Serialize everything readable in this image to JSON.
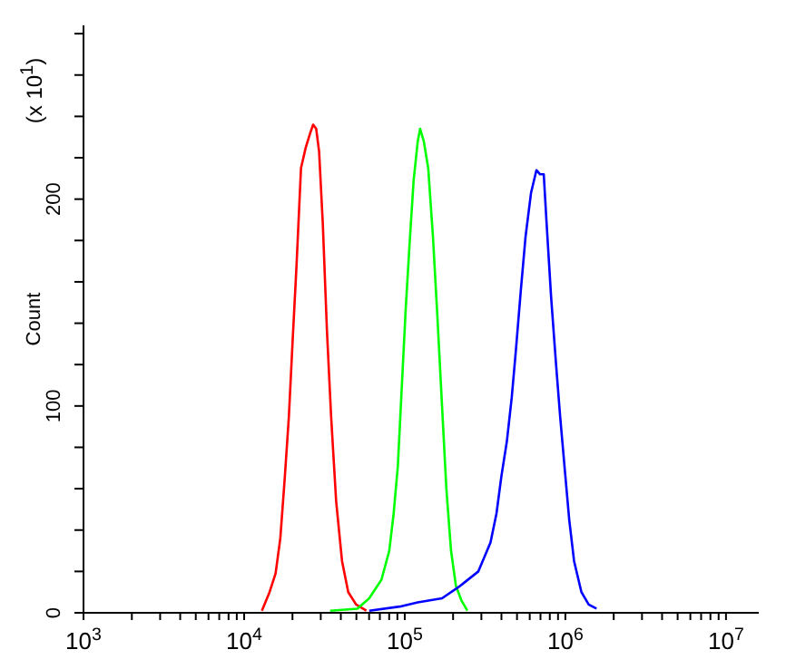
{
  "chart_data": {
    "type": "line",
    "ylabel": "Count",
    "annotations": [
      "(x 10$^{1}$)"
    ],
    "log": "x",
    "marker": "none",
    "line_style": "solid",
    "xlim": [
      1000,
      16000000
    ],
    "ylim": [
      0,
      284
    ],
    "xticks": [
      {
        "value": 1000,
        "label": "10$^{3}$"
      },
      {
        "value": 2000,
        "label": null
      },
      {
        "value": 3000,
        "label": null
      },
      {
        "value": 4000,
        "label": null
      },
      {
        "value": 5000,
        "label": null
      },
      {
        "value": 6000,
        "label": null
      },
      {
        "value": 7000,
        "label": null
      },
      {
        "value": 8000,
        "label": null
      },
      {
        "value": 9000,
        "label": null
      },
      {
        "value": 10000,
        "label": "10$^{4}$"
      },
      {
        "value": 20000,
        "label": null
      },
      {
        "value": 30000,
        "label": null
      },
      {
        "value": 40000,
        "label": null
      },
      {
        "value": 50000,
        "label": null
      },
      {
        "value": 60000,
        "label": null
      },
      {
        "value": 70000,
        "label": null
      },
      {
        "value": 80000,
        "label": null
      },
      {
        "value": 90000,
        "label": null
      },
      {
        "value": 100000,
        "label": "10$^{5}$"
      },
      {
        "value": 200000,
        "label": null
      },
      {
        "value": 300000,
        "label": null
      },
      {
        "value": 400000,
        "label": null
      },
      {
        "value": 500000,
        "label": null
      },
      {
        "value": 600000,
        "label": null
      },
      {
        "value": 700000,
        "label": null
      },
      {
        "value": 800000,
        "label": null
      },
      {
        "value": 900000,
        "label": null
      },
      {
        "value": 1000000,
        "label": "10$^{6}$"
      },
      {
        "value": 2000000,
        "label": null
      },
      {
        "value": 3000000,
        "label": null
      },
      {
        "value": 4000000,
        "label": null
      },
      {
        "value": 5000000,
        "label": null
      },
      {
        "value": 6000000,
        "label": null
      },
      {
        "value": 7000000,
        "label": null
      },
      {
        "value": 8000000,
        "label": null
      },
      {
        "value": 9000000,
        "label": null
      },
      {
        "value": 10000000,
        "label": "10$^{7}$"
      }
    ],
    "yticks": [
      0,
      {
        "value": 20,
        "label": null
      },
      {
        "value": 40,
        "label": null
      },
      {
        "value": 60,
        "label": null
      },
      {
        "value": 80,
        "label": null
      },
      100,
      {
        "value": 120,
        "label": null
      },
      {
        "value": 140,
        "label": null
      },
      {
        "value": 160,
        "label": null
      },
      {
        "value": 180,
        "label": null
      },
      200,
      {
        "value": 220,
        "label": null
      },
      {
        "value": 240,
        "label": null
      },
      {
        "value": 260,
        "label": null
      },
      {
        "value": 280,
        "label": null
      }
    ],
    "series": [
      {
        "color": "#ff0000",
        "x": [
          12900,
          14400,
          15700,
          16800,
          17900,
          19000,
          20000,
          21200,
          22600,
          24200,
          25800,
          26900,
          28100,
          29300,
          30900,
          32800,
          34800,
          37400,
          40700,
          44500,
          49800,
          57700
        ],
        "values": [
          1,
          10,
          19,
          36,
          65,
          95,
          130,
          168,
          215,
          225,
          232,
          236,
          234,
          223,
          188,
          136,
          95,
          54,
          25,
          10,
          4,
          1
        ]
      },
      {
        "color": "#00ff00",
        "x": [
          34300,
          50700,
          60100,
          71600,
          80100,
          85300,
          90600,
          95400,
          101400,
          107900,
          113600,
          120500,
          124700,
          131400,
          140000,
          149800,
          159500,
          170700,
          181600,
          194200,
          208300,
          225300,
          245400
        ],
        "values": [
          1,
          2,
          7,
          16,
          30,
          48,
          71,
          106,
          147,
          182,
          209,
          228,
          234,
          228,
          215,
          182,
          144,
          100,
          60,
          30,
          13,
          6,
          1
        ]
      },
      {
        "color": "#0000ff",
        "x": [
          60100,
          92900,
          120500,
          170700,
          221300,
          287300,
          341800,
          372500,
          399700,
          432500,
          463500,
          492200,
          528200,
          565400,
          611300,
          660400,
          696000,
          733600,
          760500,
          814600,
          873300,
          927700,
          995000,
          1057000,
          1133000,
          1259000,
          1397000,
          1563000
        ],
        "values": [
          1,
          3,
          5,
          7,
          13,
          20,
          34,
          48,
          66,
          83,
          104,
          127,
          156,
          182,
          203,
          214,
          212,
          212,
          191,
          153,
          121,
          95,
          68,
          45,
          25,
          10,
          4,
          2
        ]
      }
    ]
  }
}
